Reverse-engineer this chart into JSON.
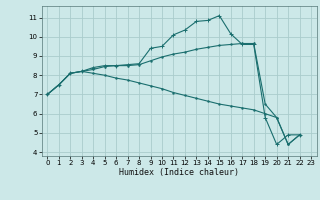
{
  "xlabel": "Humidex (Indice chaleur)",
  "bg_color": "#cce8e8",
  "grid_color": "#aacccc",
  "line_color": "#1a6e6e",
  "xlim": [
    -0.5,
    23.5
  ],
  "ylim": [
    3.8,
    11.6
  ],
  "xticks": [
    0,
    1,
    2,
    3,
    4,
    5,
    6,
    7,
    8,
    9,
    10,
    11,
    12,
    13,
    14,
    15,
    16,
    17,
    18,
    19,
    20,
    21,
    22,
    23
  ],
  "yticks": [
    4,
    5,
    6,
    7,
    8,
    9,
    10,
    11
  ],
  "line1_x": [
    0,
    1,
    2,
    3,
    4,
    5,
    6,
    7,
    8,
    9,
    10,
    11,
    12,
    13,
    14,
    15,
    16,
    17,
    18,
    19,
    20,
    21,
    22
  ],
  "line1_y": [
    7.0,
    7.5,
    8.1,
    8.2,
    8.4,
    8.5,
    8.5,
    8.55,
    8.6,
    9.4,
    9.5,
    10.1,
    10.35,
    10.8,
    10.85,
    11.1,
    10.15,
    9.6,
    9.6,
    5.8,
    4.4,
    4.9,
    4.9
  ],
  "line2_x": [
    0,
    1,
    2,
    3,
    4,
    5,
    6,
    7,
    8,
    9,
    10,
    11,
    12,
    13,
    14,
    15,
    16,
    17,
    18,
    19,
    20,
    21,
    22
  ],
  "line2_y": [
    7.0,
    7.5,
    8.1,
    8.2,
    8.3,
    8.45,
    8.5,
    8.5,
    8.55,
    8.75,
    8.95,
    9.1,
    9.2,
    9.35,
    9.45,
    9.55,
    9.6,
    9.65,
    9.65,
    6.5,
    5.8,
    4.4,
    4.9
  ],
  "line3_x": [
    0,
    1,
    2,
    3,
    4,
    5,
    6,
    7,
    8,
    9,
    10,
    11,
    12,
    13,
    14,
    15,
    16,
    17,
    18,
    19,
    20,
    21,
    22
  ],
  "line3_y": [
    7.0,
    7.5,
    8.1,
    8.2,
    8.1,
    8.0,
    7.85,
    7.75,
    7.6,
    7.45,
    7.3,
    7.1,
    6.95,
    6.8,
    6.65,
    6.5,
    6.4,
    6.3,
    6.2,
    6.0,
    5.8,
    4.4,
    4.9
  ]
}
